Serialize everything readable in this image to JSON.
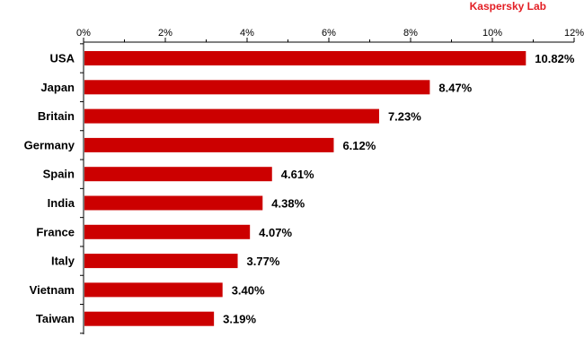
{
  "brand": "Kaspersky Lab",
  "colors": {
    "bar": "#cc0000",
    "axis": "#000000",
    "brand": "#e31e24"
  },
  "chart_data": {
    "type": "bar",
    "orientation": "horizontal",
    "title": "",
    "xlabel": "",
    "ylabel": "",
    "xlim": [
      0,
      12
    ],
    "ticks": [
      "0%",
      "2%",
      "4%",
      "6%",
      "8%",
      "10%",
      "12%"
    ],
    "tick_values": [
      0,
      2,
      4,
      6,
      8,
      10,
      12
    ],
    "categories": [
      "USA",
      "Japan",
      "Britain",
      "Germany",
      "Spain",
      "India",
      "France",
      "Italy",
      "Vietnam",
      "Taiwan"
    ],
    "values": [
      10.82,
      8.47,
      7.23,
      6.12,
      4.61,
      4.38,
      4.07,
      3.77,
      3.4,
      3.19
    ],
    "value_labels": [
      "10.82%",
      "8.47%",
      "7.23%",
      "6.12%",
      "4.61%",
      "4.38%",
      "4.07%",
      "3.77%",
      "3.40%",
      "3.19%"
    ],
    "grid": false,
    "legend": "none"
  }
}
